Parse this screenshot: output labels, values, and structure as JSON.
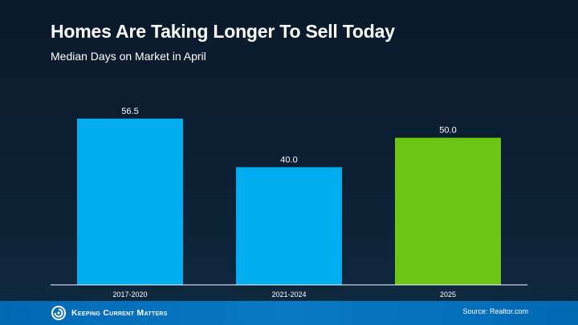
{
  "header": {
    "title": "Homes Are Taking Longer To Sell Today",
    "subtitle": "Median Days on Market in April"
  },
  "chart_data": {
    "type": "bar",
    "title": "Homes Are Taking Longer To Sell Today",
    "subtitle": "Median Days on Market in April",
    "categories": [
      "2017-2020",
      "2021-2024",
      "2025"
    ],
    "values": [
      56.5,
      40.0,
      50.0
    ],
    "value_labels": [
      "56.5",
      "40.0",
      "50.0"
    ],
    "bar_colors": [
      "#00aeef",
      "#00aeef",
      "#6cc514"
    ],
    "xlabel": "",
    "ylabel": "",
    "ylim": [
      0,
      63
    ],
    "grid": false,
    "legend": "none",
    "y_axis_visible": false
  },
  "footer": {
    "logo_text": "Keeping Current Matters",
    "logo_icon": "swirl-logo-icon",
    "source": "Source: Realtor.com"
  }
}
